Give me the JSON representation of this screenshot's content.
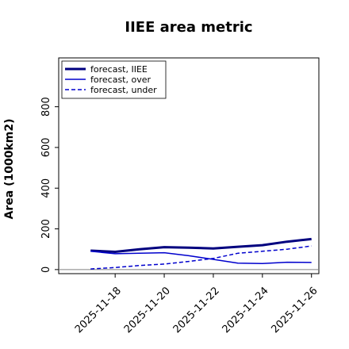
{
  "chart_data": {
    "type": "line",
    "title": "IIEE area metric",
    "xlabel": "",
    "ylabel": "Area (1000km2)",
    "x": [
      "2025-11-17",
      "2025-11-18",
      "2025-11-19",
      "2025-11-20",
      "2025-11-21",
      "2025-11-22",
      "2025-11-23",
      "2025-11-24",
      "2025-11-25",
      "2025-11-26"
    ],
    "xticks": [
      "2025-11-18",
      "2025-11-20",
      "2025-11-22",
      "2025-11-24",
      "2025-11-26"
    ],
    "highlight_tick": "2025-11-18",
    "highlight_color": "#2e8b2e",
    "yticks": [
      0,
      200,
      400,
      600,
      800
    ],
    "ylim": [
      -20,
      1040
    ],
    "grid": false,
    "legend_position": "top-left",
    "series": [
      {
        "name": "forecast, IIEE",
        "style": "solid-thick",
        "color": "#00007f",
        "values": [
          93,
          87,
          100,
          110,
          108,
          104,
          112,
          120,
          137,
          150
        ]
      },
      {
        "name": "forecast, over",
        "style": "solid",
        "color": "#0000cd",
        "values": [
          90,
          78,
          80,
          83,
          68,
          50,
          32,
          30,
          36,
          35
        ]
      },
      {
        "name": "forecast, under",
        "style": "dashed",
        "color": "#0000cd",
        "values": [
          3,
          10,
          20,
          27,
          40,
          55,
          80,
          90,
          100,
          116
        ]
      }
    ]
  }
}
